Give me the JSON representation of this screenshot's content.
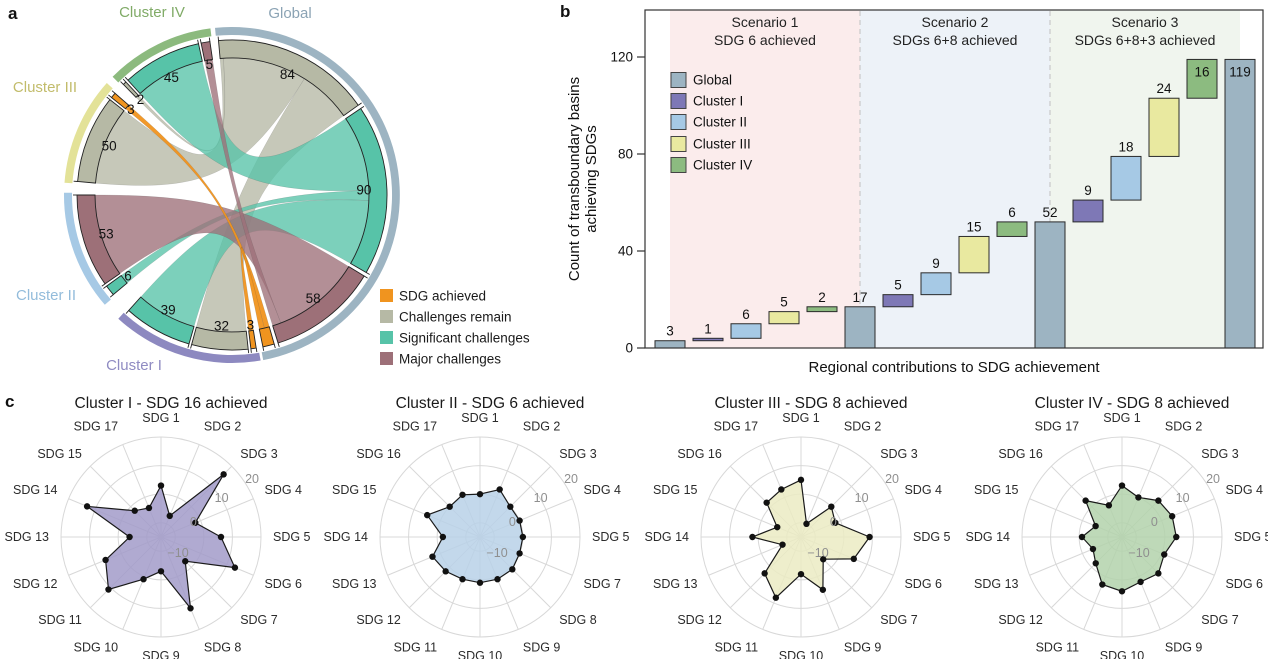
{
  "figure": {
    "panel_a_label": "a",
    "panel_b_label": "b",
    "panel_c_label": "c"
  },
  "chart_data": [
    {
      "type": "chord",
      "panel": "a",
      "category_colors": {
        "achieved": "#f0941f",
        "remain": "#b6b9a5",
        "significant": "#57c3a8",
        "major": "#9d7078"
      },
      "legend": [
        {
          "key": "achieved",
          "label": "SDG achieved"
        },
        {
          "key": "remain",
          "label": "Challenges remain"
        },
        {
          "key": "significant",
          "label": "Significant challenges"
        },
        {
          "key": "major",
          "label": "Major challenges"
        }
      ],
      "groups": [
        {
          "name": "Global",
          "band_color": "#9db4c2",
          "label_color": "#8ba3b4",
          "segments": [
            {
              "value": 84,
              "category": "remain",
              "show_label": true
            },
            {
              "value": 90,
              "category": "significant",
              "show_label": true
            },
            {
              "value": 58,
              "category": "major",
              "show_label": true
            },
            {
              "value": 6,
              "category": "achieved",
              "show_label": false
            }
          ]
        },
        {
          "name": "Cluster I",
          "band_color": "#8d89c0",
          "label_color": "#8f8bc2",
          "segments": [
            {
              "value": 3,
              "category": "achieved",
              "show_label": true
            },
            {
              "value": 32,
              "category": "remain",
              "show_label": true
            },
            {
              "value": 39,
              "category": "significant",
              "show_label": true
            }
          ]
        },
        {
          "name": "Cluster II",
          "band_color": "#a6c9e5",
          "label_color": "#93bcdb",
          "segments": [
            {
              "value": 6,
              "category": "significant",
              "show_label": true
            },
            {
              "value": 53,
              "category": "major",
              "show_label": true
            }
          ]
        },
        {
          "name": "Cluster III",
          "band_color": "#e3e298",
          "label_color": "#c2bc6b",
          "segments": [
            {
              "value": 50,
              "category": "remain",
              "show_label": true
            },
            {
              "value": 3,
              "category": "achieved",
              "show_label": true
            }
          ]
        },
        {
          "name": "Cluster IV",
          "band_color": "#8cba7e",
          "label_color": "#80ab67",
          "segments": [
            {
              "value": 2,
              "category": "remain",
              "show_label": true
            },
            {
              "value": 45,
              "category": "significant",
              "show_label": true
            },
            {
              "value": 5,
              "category": "major",
              "show_label": true
            }
          ]
        }
      ],
      "ribbons": [
        {
          "global_seg": 0,
          "parts": [
            {
              "group": "Cluster IV",
              "seg": 0,
              "value": 2
            },
            {
              "group": "Cluster III",
              "seg": 0,
              "value": 50
            },
            {
              "group": "Cluster I",
              "seg": 1,
              "value": 32
            }
          ]
        },
        {
          "global_seg": 1,
          "parts": [
            {
              "group": "Cluster IV",
              "seg": 1,
              "value": 45
            },
            {
              "group": "Cluster II",
              "seg": 0,
              "value": 6
            },
            {
              "group": "Cluster I",
              "seg": 2,
              "value": 39
            }
          ]
        },
        {
          "global_seg": 2,
          "parts": [
            {
              "group": "Cluster II",
              "seg": 1,
              "value": 53
            },
            {
              "group": "Cluster IV",
              "seg": 2,
              "value": 5
            }
          ]
        },
        {
          "global_seg": 3,
          "parts": [
            {
              "group": "Cluster III",
              "seg": 1,
              "value": 3
            },
            {
              "group": "Cluster I",
              "seg": 0,
              "value": 3
            }
          ]
        }
      ]
    },
    {
      "type": "waterfall_bar",
      "panel": "b",
      "ylabel_lines": [
        "Count of transboundary basins",
        "achieving SDGs"
      ],
      "xlabel": "Regional contributions to SDG achievement",
      "yticks": [
        0,
        40,
        80,
        120
      ],
      "ylim": [
        0,
        139
      ],
      "series_colors": {
        "Global": "#9db4c2",
        "Cluster I": "#7e78b6",
        "Cluster II": "#a6c9e5",
        "Cluster III": "#e9e9a0",
        "Cluster IV": "#8cbb80"
      },
      "legend": [
        "Global",
        "Cluster I",
        "Cluster II",
        "Cluster III",
        "Cluster IV"
      ],
      "scenarios": [
        {
          "line1": "Scenario 1",
          "line2": "SDG 6 achieved",
          "bg": "#fbecec"
        },
        {
          "line1": "Scenario 2",
          "line2": "SDGs 6+8 achieved",
          "bg": "#edf2f8"
        },
        {
          "line1": "Scenario 3",
          "line2": "SDGs 6+8+3 achieved",
          "bg": "#f0f5ee"
        }
      ],
      "bars": [
        {
          "label": "3",
          "series": "Global",
          "start": 0,
          "end": 3
        },
        {
          "label": "1",
          "series": "Cluster I",
          "start": 3,
          "end": 4
        },
        {
          "label": "6",
          "series": "Cluster II",
          "start": 4,
          "end": 10
        },
        {
          "label": "5",
          "series": "Cluster III",
          "start": 10,
          "end": 15
        },
        {
          "label": "2",
          "series": "Cluster IV",
          "start": 15,
          "end": 17
        },
        {
          "label": "17",
          "series": "Global",
          "start": 0,
          "end": 17
        },
        {
          "label": "5",
          "series": "Cluster I",
          "start": 17,
          "end": 22
        },
        {
          "label": "9",
          "series": "Cluster II",
          "start": 22,
          "end": 31
        },
        {
          "label": "15",
          "series": "Cluster III",
          "start": 31,
          "end": 46
        },
        {
          "label": "6",
          "series": "Cluster IV",
          "start": 46,
          "end": 52
        },
        {
          "label": "52",
          "series": "Global",
          "start": 0,
          "end": 52
        },
        {
          "label": "9",
          "series": "Cluster I",
          "start": 52,
          "end": 61
        },
        {
          "label": "18",
          "series": "Cluster II",
          "start": 61,
          "end": 79
        },
        {
          "label": "24",
          "series": "Cluster III",
          "start": 79,
          "end": 103
        },
        {
          "label": "16",
          "series": "Cluster IV",
          "start": 103,
          "end": 119,
          "label_inside": true
        },
        {
          "label": "119",
          "series": "Global",
          "start": 0,
          "end": 119,
          "label_inside": true
        }
      ]
    },
    {
      "type": "radar",
      "panel": "c",
      "scale": {
        "min": -15,
        "max": 20,
        "rings": [
          -10,
          0,
          10,
          20
        ],
        "ring_labels": [
          "−10",
          "0",
          "10",
          "20"
        ]
      },
      "charts": [
        {
          "title": "Cluster I - SDG 16 achieved",
          "fill": "#a29bc9",
          "axes": [
            "SDG 1",
            "SDG 2",
            "SDG 3",
            "SDG 4",
            "SDG 5",
            "SDG 6",
            "SDG 7",
            "SDG 8",
            "SDG 9",
            "SDG 10",
            "SDG 11",
            "SDG 12",
            "SDG 13",
            "SDG 14",
            "SDG 15",
            "SDG 17"
          ],
          "values": [
            3,
            -7,
            16,
            -2,
            6,
            13,
            -3,
            12,
            -3,
            1,
            11,
            6,
            -4,
            13,
            -2,
            -4
          ]
        },
        {
          "title": "Cluster II - SDG 6 achieved",
          "fill": "#b9d1e8",
          "axes": [
            "SDG 1",
            "SDG 2",
            "SDG 3",
            "SDG 4",
            "SDG 5",
            "SDG 7",
            "SDG 8",
            "SDG 9",
            "SDG 10",
            "SDG 11",
            "SDG 12",
            "SDG 13",
            "SDG 14",
            "SDG 15",
            "SDG 16",
            "SDG 17"
          ],
          "values": [
            0,
            3,
            0,
            0,
            0,
            0,
            1,
            1,
            1,
            1,
            2,
            3,
            -2,
            5,
            0,
            1
          ]
        },
        {
          "title": "Cluster III - SDG 8 achieved",
          "fill": "#ebebc3",
          "axes": [
            "SDG 1",
            "SDG 2",
            "SDG 3",
            "SDG 4",
            "SDG 5",
            "SDG 6",
            "SDG 7",
            "SDG 9",
            "SDG 10",
            "SDG 11",
            "SDG 12",
            "SDG 13",
            "SDG 14",
            "SDG 15",
            "SDG 16",
            "SDG 17"
          ],
          "values": [
            5,
            -10,
            0,
            -2,
            9,
            5,
            -4,
            5,
            -2,
            8,
            3,
            -8,
            2,
            -6,
            2,
            3
          ]
        },
        {
          "title": "Cluster IV - SDG 8 achieved",
          "fill": "#b3d2ac",
          "axes": [
            "SDG 1",
            "SDG 2",
            "SDG 3",
            "SDG 4",
            "SDG 5",
            "SDG 6",
            "SDG 7",
            "SDG 9",
            "SDG 10",
            "SDG 11",
            "SDG 12",
            "SDG 13",
            "SDG 14",
            "SDG 15",
            "SDG 16",
            "SDG 17"
          ],
          "values": [
            3,
            0,
            3,
            4,
            4,
            1,
            3,
            2,
            4,
            3,
            -2,
            -4,
            -1,
            -5,
            3,
            -3
          ]
        }
      ]
    }
  ]
}
